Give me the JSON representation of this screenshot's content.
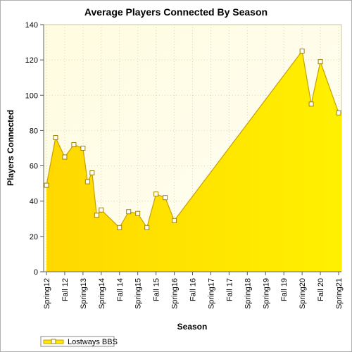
{
  "chart_data": {
    "type": "area",
    "title": "Average Players Connected By Season",
    "xlabel": "Season",
    "ylabel": "Players Connected",
    "ylim": [
      0,
      140
    ],
    "yticks": [
      0,
      20,
      40,
      60,
      80,
      100,
      120,
      140
    ],
    "x_tick_labels": [
      "Spring12",
      "Fall 12",
      "Spring13",
      "Spring14",
      "Fall 14",
      "Spring15",
      "Fall 15",
      "Spring16",
      "Fall 16",
      "Spring17",
      "Fall 17",
      "Spring18",
      "Spring19",
      "Fall 19",
      "Spring20",
      "Fall 20",
      "Spring21"
    ],
    "grid": true,
    "legend_position": "bottom-left",
    "series": [
      {
        "name": "Lostways BBS",
        "color": "#ffe800",
        "points": [
          {
            "x": "Spring12",
            "y": 49
          },
          {
            "x": "",
            "y": 76
          },
          {
            "x": "Fall 12",
            "y": 65
          },
          {
            "x": "",
            "y": 72
          },
          {
            "x": "Spring13",
            "y": 70
          },
          {
            "x": "",
            "y": 51
          },
          {
            "x": "",
            "y": 56
          },
          {
            "x": "",
            "y": 32
          },
          {
            "x": "Spring14",
            "y": 35
          },
          {
            "x": "Fall 14",
            "y": 25
          },
          {
            "x": "",
            "y": 34
          },
          {
            "x": "Spring15",
            "y": 33
          },
          {
            "x": "",
            "y": 25
          },
          {
            "x": "Fall 15",
            "y": 44
          },
          {
            "x": "",
            "y": 42
          },
          {
            "x": "Spring16",
            "y": 29
          },
          {
            "x": "Spring20",
            "y": 125
          },
          {
            "x": "",
            "y": 95
          },
          {
            "x": "Fall 20",
            "y": 119
          },
          {
            "x": "Spring21",
            "y": 90
          }
        ]
      }
    ]
  }
}
